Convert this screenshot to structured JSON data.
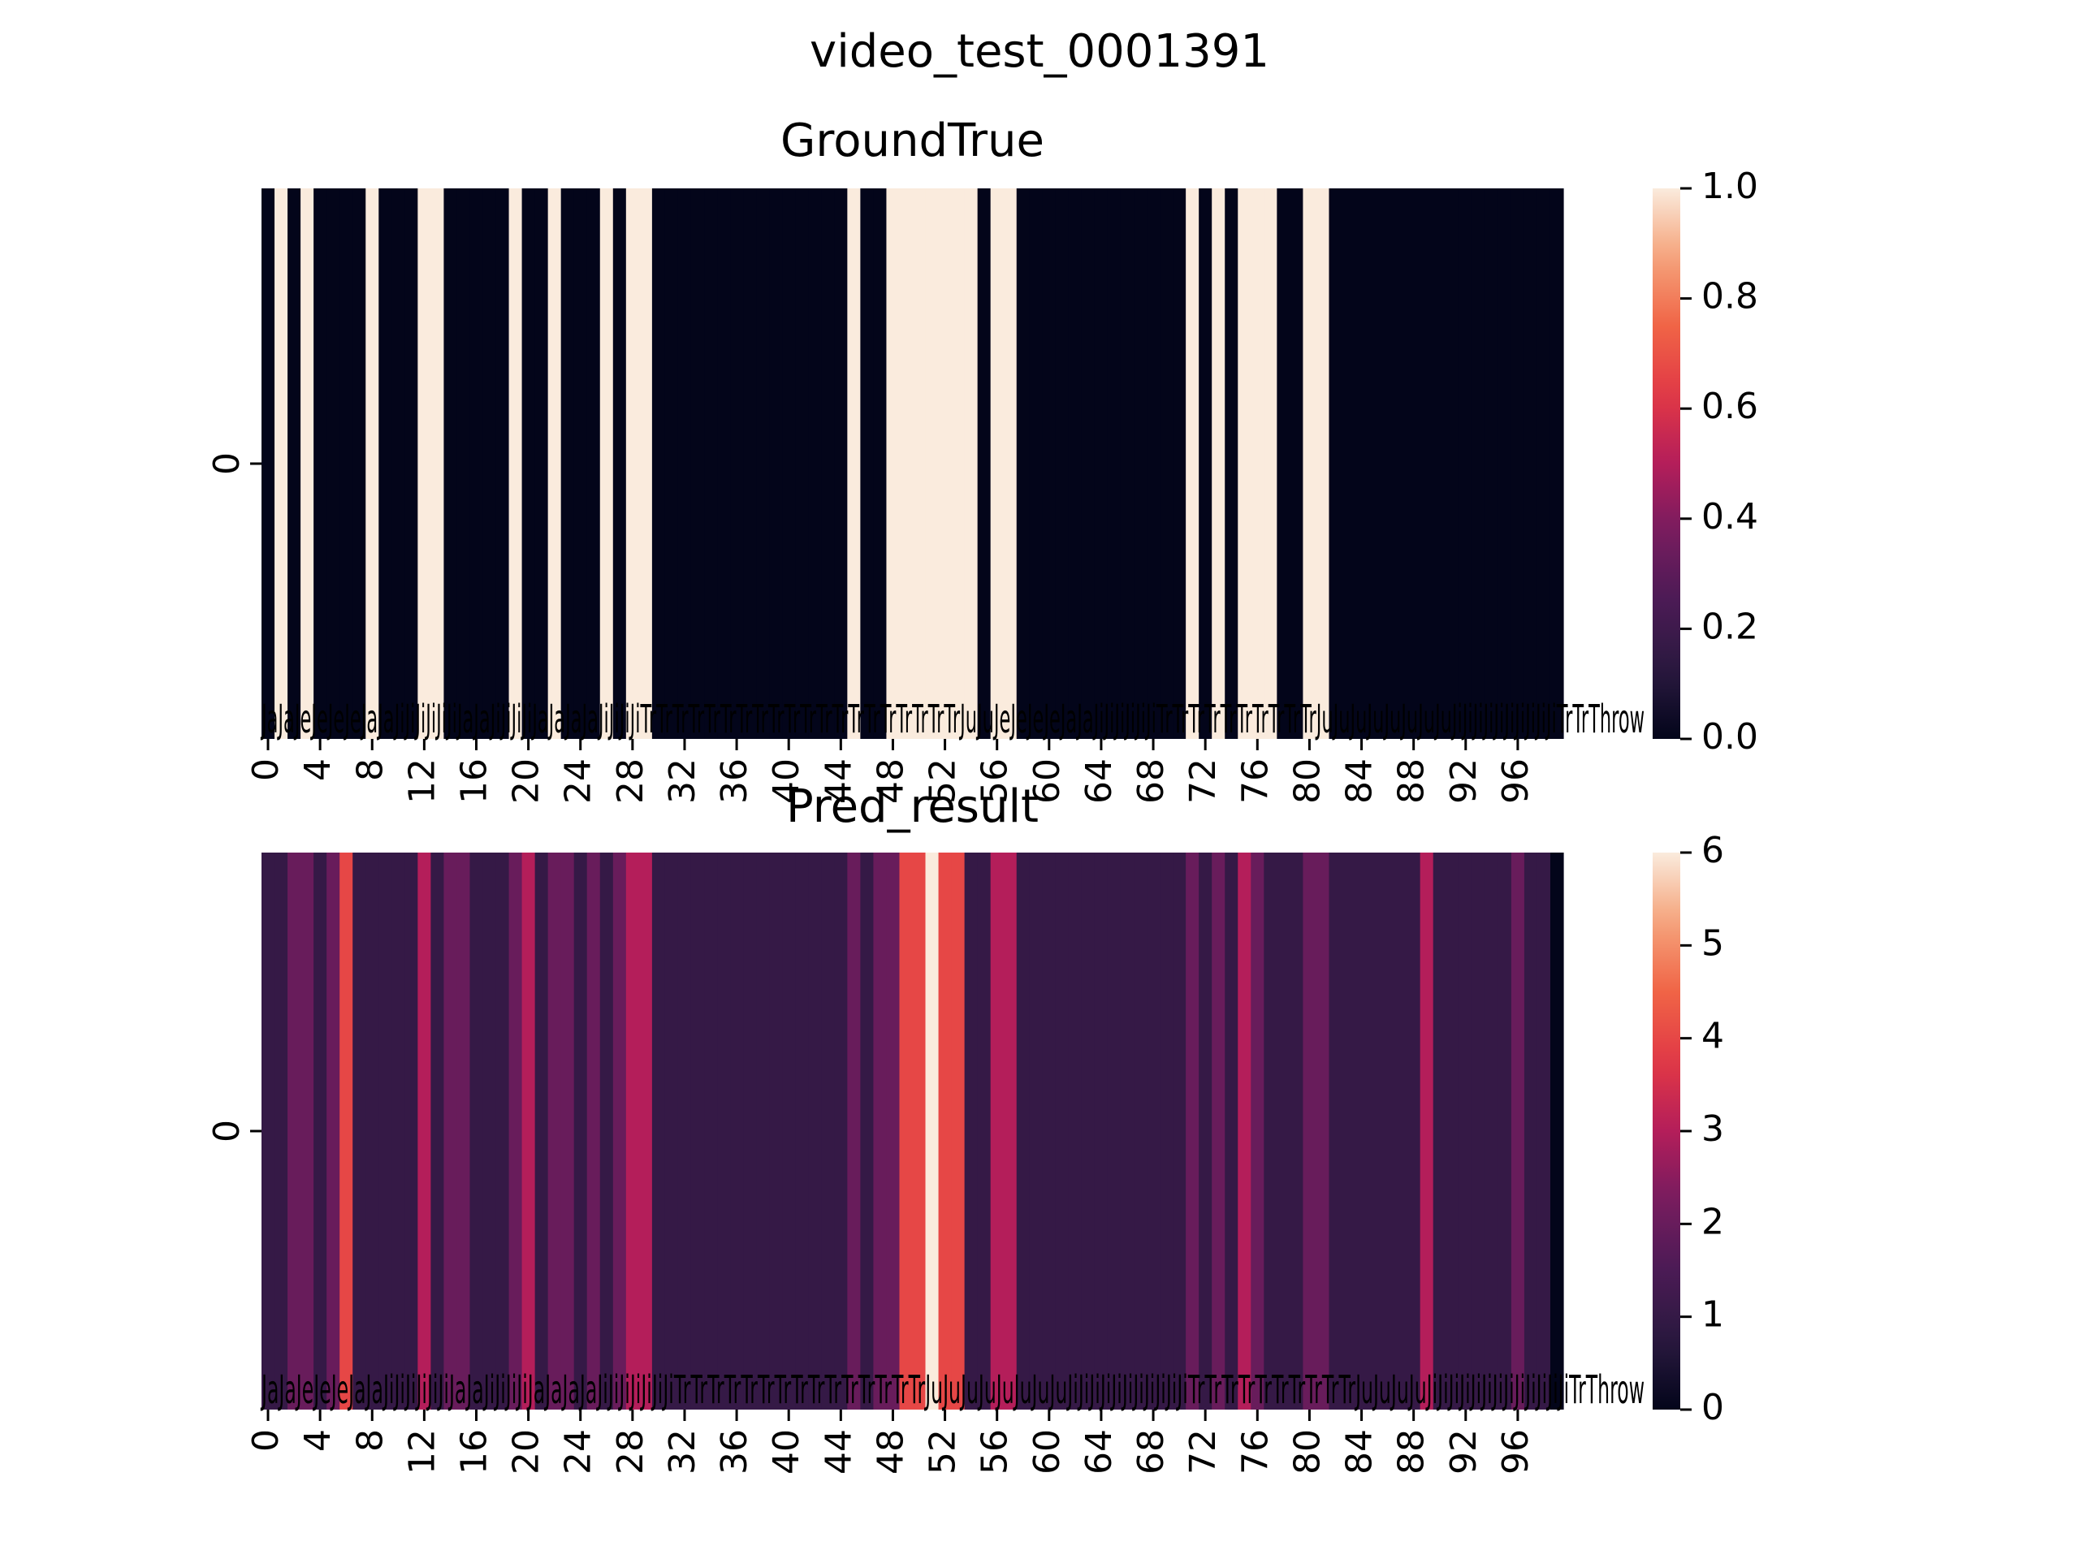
{
  "figure": {
    "suptitle": "video_test_0001391"
  },
  "chart_data": [
    {
      "type": "heatmap",
      "title": "GroundTrue",
      "xlabel": "",
      "ylabel": "",
      "y_ticks": [
        "0"
      ],
      "x_ticks": [
        "0",
        "4",
        "8",
        "12",
        "16",
        "20",
        "24",
        "28",
        "32",
        "36",
        "40",
        "44",
        "48",
        "52",
        "56",
        "60",
        "64",
        "68",
        "72",
        "76",
        "80",
        "84",
        "88",
        "92",
        "96"
      ],
      "x_count": 100,
      "values": [
        0,
        1,
        0,
        1,
        0,
        0,
        0,
        0,
        1,
        0,
        0,
        0,
        1,
        1,
        0,
        0,
        0,
        0,
        0,
        1,
        0,
        0,
        1,
        0,
        0,
        0,
        1,
        0,
        1,
        1,
        0,
        0,
        0,
        0,
        0,
        0,
        0,
        0,
        0,
        0,
        0,
        0,
        0,
        0,
        0,
        1,
        0,
        0,
        1,
        1,
        1,
        1,
        1,
        1,
        1,
        0,
        1,
        1,
        0,
        0,
        0,
        0,
        0,
        0,
        0,
        0,
        0,
        0,
        0,
        0,
        0,
        1,
        0,
        1,
        0,
        1,
        1,
        1,
        0,
        0,
        1,
        1,
        0,
        0,
        0,
        0,
        0,
        0,
        0,
        0,
        0,
        0,
        0,
        0,
        0,
        0,
        0,
        0,
        0,
        0
      ],
      "colorbar": {
        "min": 0,
        "max": 1,
        "ticks": [
          "0.0",
          "0.2",
          "0.4",
          "0.6",
          "0.8",
          "1.0"
        ]
      },
      "annotation_text": "JaJaJeJeJeJeJaJaJiJiJiJiJiJiJaJaJiJiJiJiJaJaJaJaJiJiJiJiTrTrTrTrTrTrTrTrTrTrTrTrTrTrTrTrTrTrTrTrJuJuJeJeJeJeJaJaJiJiJiJiJiJiTrTrTrTrTrTrTrTrTrTrJuJuJuJuJuJuJuJuJiJiJiJiJiJiJiJiJiJiTrTrThrow"
    },
    {
      "type": "heatmap",
      "title": "Pred_result",
      "xlabel": "",
      "ylabel": "",
      "y_ticks": [
        "0"
      ],
      "x_ticks": [
        "0",
        "4",
        "8",
        "12",
        "16",
        "20",
        "24",
        "28",
        "32",
        "36",
        "40",
        "44",
        "48",
        "52",
        "56",
        "60",
        "64",
        "68",
        "72",
        "76",
        "80",
        "84",
        "88",
        "92",
        "96"
      ],
      "x_count": 100,
      "values": [
        1,
        1,
        2,
        2,
        1,
        2,
        4,
        1,
        1,
        1,
        1,
        1,
        3,
        1,
        2,
        2,
        1,
        1,
        1,
        2,
        3,
        1,
        2,
        2,
        1,
        2,
        1,
        2,
        3,
        3,
        1,
        1,
        1,
        1,
        1,
        1,
        1,
        1,
        1,
        1,
        1,
        1,
        1,
        1,
        1,
        2,
        1,
        2,
        2,
        4,
        4,
        6,
        4,
        4,
        1,
        1,
        3,
        3,
        1,
        1,
        1,
        1,
        1,
        1,
        1,
        1,
        1,
        1,
        1,
        1,
        1,
        2,
        1,
        2,
        1,
        3,
        2,
        1,
        1,
        1,
        2,
        2,
        1,
        1,
        1,
        1,
        1,
        1,
        1,
        3,
        1,
        1,
        1,
        1,
        1,
        1,
        2,
        1,
        1,
        0
      ],
      "colorbar": {
        "min": 0,
        "max": 6,
        "ticks": [
          "0",
          "1",
          "2",
          "3",
          "4",
          "5",
          "6"
        ]
      },
      "annotation_text": "JaJaJeJeJeJaJaJiJiJiJiJiJiJaJaJiJiJiJiJaJaJaJaJiJiJiJiJiJiJiTrTrTrTrTrTrTrTrTrTrTrTrTrTrTrJuJuJuJuJuJuJuJuJiJiJiJiJiJiJiJiJiJiJiTrTrTrTrTrTrTrTrTrTrJuJuJuJuJiJiJiJiJiJiJiJiJiJiJiJiJiTrThrow"
    }
  ]
}
